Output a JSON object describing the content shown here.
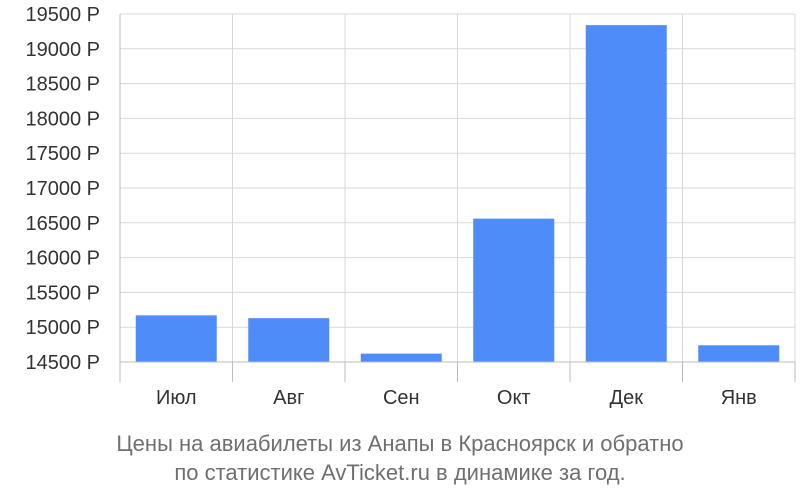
{
  "chart_data": {
    "type": "bar",
    "categories": [
      "Июл",
      "Авг",
      "Сен",
      "Окт",
      "Дек",
      "Янв"
    ],
    "values": [
      15170,
      15130,
      14620,
      16560,
      19340,
      14740
    ],
    "ylim": [
      14400,
      19500
    ],
    "yticks": [
      14500,
      15000,
      15500,
      16000,
      16500,
      17000,
      17500,
      18000,
      18500,
      19000,
      19500
    ],
    "ytick_labels": [
      "14500 Р",
      "15000 Р",
      "15500 Р",
      "16000 Р",
      "16500 Р",
      "17000 Р",
      "17500 Р",
      "18000 Р",
      "18500 Р",
      "19000 Р",
      "19500 Р"
    ],
    "grid": true,
    "bar_color": "#4e8cfa",
    "caption_line1": "Цены на авиабилеты из Анапы в Красноярск и обратно",
    "caption_line2": "по статистике AvTicket.ru в динамике за год."
  }
}
